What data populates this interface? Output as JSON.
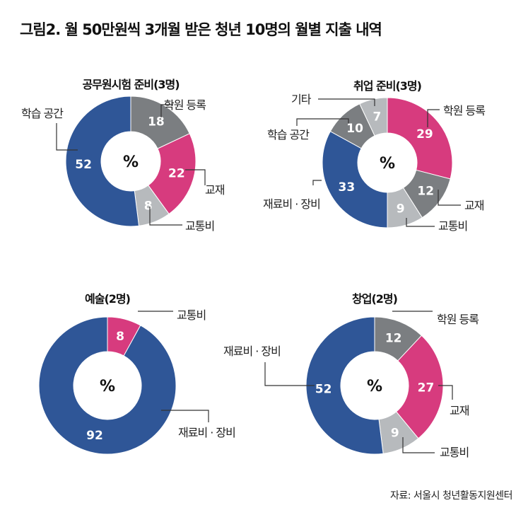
{
  "title": "그림2. 월 50만원씩 3개월 받은 청년 10명의 월별 지출 내역",
  "source": "자료: 서울시 청년활동지원센터",
  "colors": {
    "gray": "#7b7e81",
    "pink": "#d73b7e",
    "light": "#b7babd",
    "blue": "#2f5697"
  },
  "chart_data": [
    {
      "type": "pie",
      "title": "공무원시험 준비(3명)",
      "center_label": "%",
      "slices": [
        {
          "label": "학원 등록",
          "value": 18,
          "color": "gray"
        },
        {
          "label": "교재",
          "value": 22,
          "color": "pink"
        },
        {
          "label": "교통비",
          "value": 8,
          "color": "light"
        },
        {
          "label": "학습 공간",
          "value": 52,
          "color": "blue"
        }
      ]
    },
    {
      "type": "pie",
      "title": "취업 준비(3명)",
      "center_label": "%",
      "slices": [
        {
          "label": "학원 등록",
          "value": 29,
          "color": "pink"
        },
        {
          "label": "교재",
          "value": 12,
          "color": "gray"
        },
        {
          "label": "교통비",
          "value": 9,
          "color": "light"
        },
        {
          "label": "재료비 · 장비",
          "value": 33,
          "color": "blue"
        },
        {
          "label": "학습 공간",
          "value": 10,
          "color": "gray"
        },
        {
          "label": "기타",
          "value": 7,
          "color": "light"
        }
      ]
    },
    {
      "type": "pie",
      "title": "예술(2명)",
      "center_label": "%",
      "slices": [
        {
          "label": "교통비",
          "value": 8,
          "color": "pink"
        },
        {
          "label": "재료비 · 장비",
          "value": 92,
          "color": "blue"
        }
      ]
    },
    {
      "type": "pie",
      "title": "창업(2명)",
      "center_label": "%",
      "slices": [
        {
          "label": "학원 등록",
          "value": 12,
          "color": "gray"
        },
        {
          "label": "교재",
          "value": 27,
          "color": "pink"
        },
        {
          "label": "교통비",
          "value": 9,
          "color": "light"
        },
        {
          "label": "재료비 · 장비",
          "value": 52,
          "color": "blue"
        }
      ]
    }
  ]
}
